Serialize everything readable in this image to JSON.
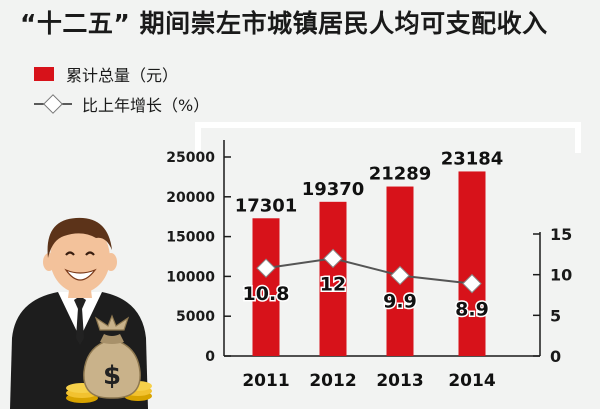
{
  "title": "“十二五” 期间崇左市城镇居民人均可支配收入",
  "legend": {
    "bar_label": "累计总量（元）",
    "line_label": "比上年增长（%）"
  },
  "colors": {
    "bar": "#d7121a",
    "line": "#555555",
    "marker_fill": "#ffffff",
    "frame": "#ffffff",
    "background": "#f2f3f2"
  },
  "chart_data": {
    "type": "bar",
    "categories": [
      "2011",
      "2012",
      "2013",
      "2014"
    ],
    "series": [
      {
        "name": "累计总量（元）",
        "type": "bar",
        "axis": "left",
        "values": [
          17301,
          19370,
          21289,
          23184
        ]
      },
      {
        "name": "比上年增长（%）",
        "type": "line",
        "axis": "right",
        "values": [
          10.8,
          12,
          9.9,
          8.9
        ]
      }
    ],
    "y_left": {
      "ylim": [
        0,
        25000
      ],
      "ticks": [
        0,
        5000,
        10000,
        15000,
        20000,
        25000
      ]
    },
    "y_right": {
      "ylim": [
        0,
        15
      ],
      "ticks": [
        0,
        5,
        10,
        15
      ]
    },
    "grid": false,
    "legend_position": "top-left"
  },
  "illustration": {
    "figure": "businessman",
    "money_bag_symbol": "$"
  }
}
